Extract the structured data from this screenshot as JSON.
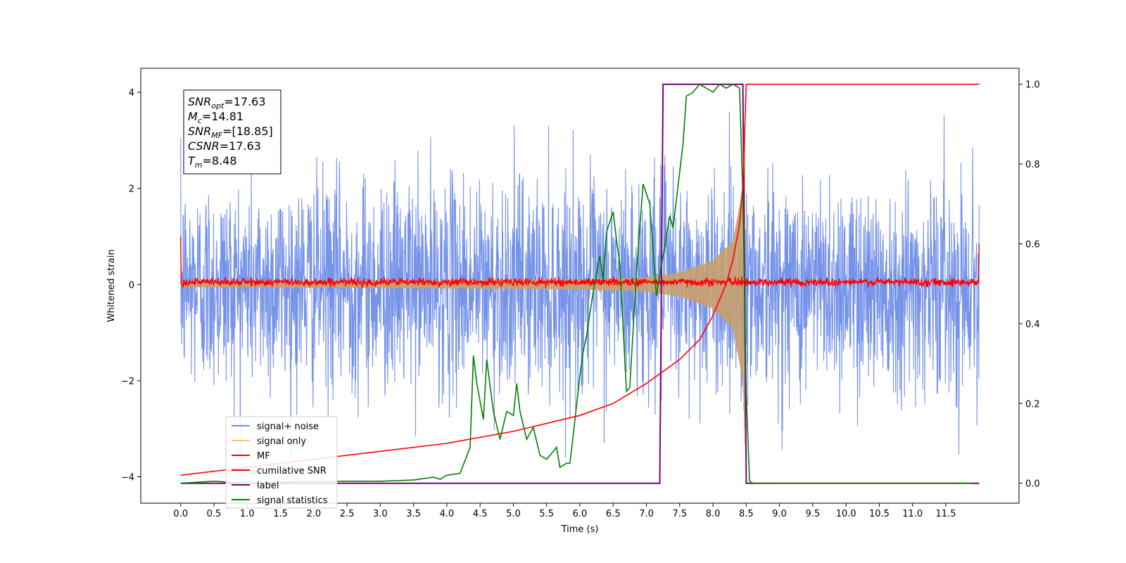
{
  "chart_data": {
    "type": "line",
    "xlabel": "Time (s)",
    "ylabel": "Whitened strain",
    "xlim": [
      -0.6,
      12.6
    ],
    "ylim": [
      -4.55,
      4.5
    ],
    "y2lim": [
      -0.05,
      1.04
    ],
    "xticks": [
      "0.0",
      "0.5",
      "1.0",
      "1.5",
      "2.0",
      "2.5",
      "3.0",
      "3.5",
      "4.0",
      "4.5",
      "5.0",
      "5.5",
      "6.0",
      "6.5",
      "7.0",
      "7.5",
      "8.0",
      "8.5",
      "9.0",
      "9.5",
      "10.0",
      "10.5",
      "11.0",
      "11.5"
    ],
    "yticks": [
      4,
      2,
      0,
      -2,
      -4
    ],
    "y2ticks": [
      0.0,
      0.2,
      0.4,
      0.6,
      0.8,
      1.0
    ],
    "annotation": {
      "lines": [
        {
          "sym": "SNR",
          "sub": "opt",
          "value": "=17.63"
        },
        {
          "sym": "M",
          "sub": "c",
          "value": "=14.81"
        },
        {
          "sym": "SNR",
          "sub": "MF",
          "value": "=[18.85]"
        },
        {
          "sym": "CSNR",
          "sub": "",
          "value": "=17.63"
        },
        {
          "sym": "T",
          "sub": "m",
          "value": "=8.48"
        }
      ]
    },
    "legend": {
      "placement": "lower-left",
      "entries": [
        {
          "label": "signal+ noise",
          "color": "#6f8de8"
        },
        {
          "label": "signal only",
          "color": "#f5c96b"
        },
        {
          "label": "MF",
          "color": "#ff0000"
        },
        {
          "label": "cumilative SNR",
          "color": "#ff0000"
        },
        {
          "label": "label",
          "color": "#800080"
        },
        {
          "label": "signal statistics",
          "color": "#008000"
        }
      ]
    },
    "series": [
      {
        "name": "signal+ noise",
        "axis": "left",
        "color": "#6f8de8",
        "description_range": [
          0.0,
          12.0
        ],
        "noise_std": 1.0,
        "peak_amplitude": 3.6
      },
      {
        "name": "signal only",
        "axis": "left",
        "color": "#f5c96b",
        "chirp_end": 8.48,
        "envelope": [
          [
            0.0,
            0.05
          ],
          [
            6.0,
            0.1
          ],
          [
            7.0,
            0.15
          ],
          [
            7.5,
            0.25
          ],
          [
            8.0,
            0.5
          ],
          [
            8.3,
            0.9
          ],
          [
            8.45,
            2.0
          ],
          [
            8.48,
            3.5
          ]
        ]
      },
      {
        "name": "MF",
        "axis": "left",
        "color": "#ff0000",
        "baseline": 0.05,
        "noise_std": 0.04,
        "endpoints": [
          [
            0.0,
            1.0
          ],
          [
            12.0,
            0.85
          ]
        ]
      },
      {
        "name": "cumilative SNR",
        "axis": "right",
        "color": "#ff0000",
        "x": [
          0.0,
          1.0,
          2.0,
          3.0,
          4.0,
          5.0,
          6.0,
          6.5,
          7.0,
          7.5,
          7.8,
          8.0,
          8.2,
          8.3,
          8.4,
          8.45,
          8.48,
          8.5,
          12.0
        ],
        "y": [
          0.02,
          0.04,
          0.06,
          0.08,
          0.1,
          0.13,
          0.17,
          0.2,
          0.25,
          0.31,
          0.36,
          0.42,
          0.5,
          0.56,
          0.65,
          0.75,
          0.9,
          1.0,
          1.0
        ]
      },
      {
        "name": "label",
        "axis": "right",
        "color": "#800080",
        "x": [
          0.0,
          7.2,
          7.25,
          8.45,
          8.5,
          12.0
        ],
        "y": [
          0.0,
          0.0,
          1.0,
          1.0,
          0.0,
          0.0
        ]
      },
      {
        "name": "signal statistics",
        "axis": "right",
        "color": "#008000",
        "x": [
          0.0,
          0.5,
          1.0,
          2.0,
          3.0,
          3.5,
          3.8,
          3.9,
          4.0,
          4.2,
          4.35,
          4.4,
          4.45,
          4.55,
          4.6,
          4.7,
          4.8,
          4.9,
          5.0,
          5.05,
          5.1,
          5.2,
          5.3,
          5.4,
          5.5,
          5.6,
          5.65,
          5.7,
          5.8,
          5.85,
          5.9,
          6.0,
          6.05,
          6.1,
          6.2,
          6.3,
          6.35,
          6.4,
          6.5,
          6.55,
          6.6,
          6.7,
          6.75,
          6.85,
          6.95,
          7.05,
          7.15,
          7.25,
          7.35,
          7.4,
          7.5,
          7.55,
          7.6,
          7.7,
          7.8,
          7.9,
          8.0,
          8.1,
          8.2,
          8.3,
          8.4,
          8.45,
          8.5,
          8.55,
          8.6,
          8.65,
          9.0,
          10.0,
          11.0,
          11.9
        ],
        "y": [
          0.0,
          0.005,
          0.0,
          0.005,
          0.005,
          0.008,
          0.015,
          0.01,
          0.02,
          0.025,
          0.09,
          0.32,
          0.25,
          0.16,
          0.31,
          0.18,
          0.11,
          0.18,
          0.17,
          0.25,
          0.18,
          0.11,
          0.14,
          0.07,
          0.06,
          0.08,
          0.09,
          0.04,
          0.05,
          0.05,
          0.12,
          0.27,
          0.33,
          0.37,
          0.48,
          0.57,
          0.51,
          0.63,
          0.68,
          0.61,
          0.55,
          0.23,
          0.24,
          0.53,
          0.75,
          0.7,
          0.47,
          0.57,
          0.67,
          0.64,
          0.78,
          0.85,
          0.97,
          0.98,
          1.0,
          0.99,
          0.98,
          1.0,
          0.99,
          1.0,
          0.99,
          0.72,
          0.22,
          0.005,
          0.0,
          0.0,
          0.0,
          0.0,
          0.0,
          0.0
        ]
      }
    ]
  }
}
